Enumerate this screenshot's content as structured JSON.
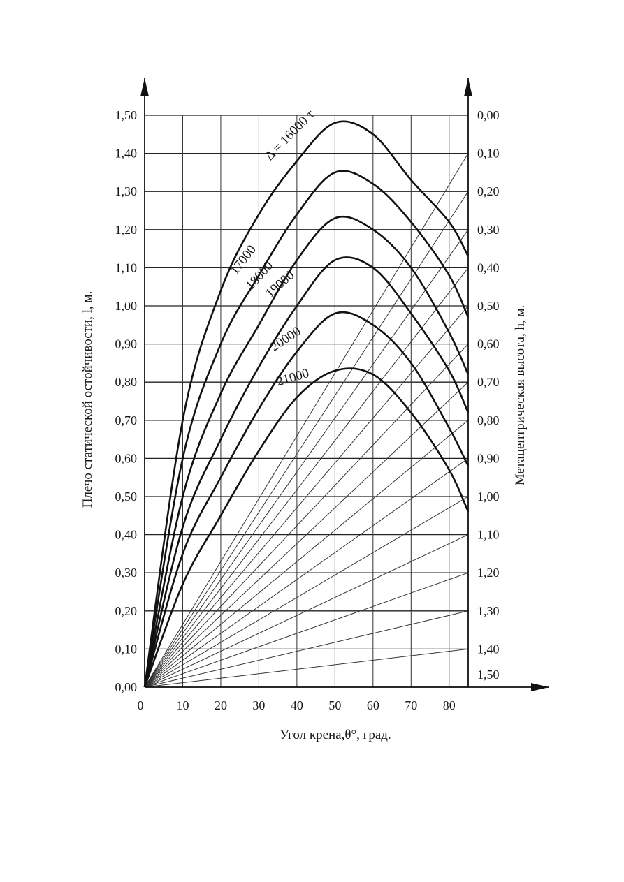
{
  "chart_data": {
    "type": "line",
    "title": "",
    "xlabel": "Угол крена,θ°, град.",
    "ylabel": "Плечо статической остойчивости, l, м.",
    "y2label": "Метацентрическая высота, h, м.",
    "xlim": [
      0,
      85
    ],
    "ylim": [
      0,
      1.5
    ],
    "y2lim": [
      1.5,
      0
    ],
    "grid": true,
    "x_ticks": [
      "0",
      "10",
      "20",
      "30",
      "40",
      "50",
      "60",
      "70",
      "80"
    ],
    "y_ticks": [
      "0,00",
      "0,10",
      "0,20",
      "0,30",
      "0,40",
      "0,50",
      "0,60",
      "0,70",
      "0,80",
      "0,90",
      "1,00",
      "1,10",
      "1,20",
      "1,30",
      "1,40",
      "1,50"
    ],
    "y2_ticks": [
      "0,00",
      "0,10",
      "0,20",
      "0,30",
      "0,40",
      "0,50",
      "0,60",
      "0,70",
      "0,80",
      "0,90",
      "1,00",
      "1,10",
      "1,20",
      "1,30",
      "1,40",
      "1,50"
    ],
    "series": [
      {
        "name": "Δ = 16000 т",
        "label": "Δ = 16000 т",
        "x": [
          0,
          10,
          20,
          30,
          40,
          50,
          60,
          70,
          80,
          85
        ],
        "y": [
          0,
          0.7,
          1.04,
          1.24,
          1.38,
          1.48,
          1.45,
          1.33,
          1.22,
          1.13
        ]
      },
      {
        "name": "17000",
        "label": "17000",
        "x": [
          0,
          10,
          20,
          30,
          40,
          50,
          60,
          70,
          80,
          85
        ],
        "y": [
          0,
          0.6,
          0.9,
          1.08,
          1.24,
          1.35,
          1.32,
          1.22,
          1.08,
          0.97
        ]
      },
      {
        "name": "18000",
        "label": "18000",
        "x": [
          0,
          10,
          20,
          30,
          40,
          50,
          60,
          70,
          80,
          85
        ],
        "y": [
          0,
          0.5,
          0.77,
          0.95,
          1.12,
          1.23,
          1.2,
          1.1,
          0.93,
          0.82
        ]
      },
      {
        "name": "19000",
        "label": "19000",
        "x": [
          0,
          10,
          20,
          30,
          40,
          50,
          60,
          70,
          80,
          85
        ],
        "y": [
          0,
          0.42,
          0.65,
          0.84,
          1.0,
          1.12,
          1.1,
          0.98,
          0.83,
          0.72
        ]
      },
      {
        "name": "20000",
        "label": "20000",
        "x": [
          0,
          10,
          20,
          30,
          40,
          50,
          60,
          70,
          80,
          85
        ],
        "y": [
          0,
          0.35,
          0.55,
          0.73,
          0.88,
          0.98,
          0.95,
          0.85,
          0.68,
          0.58
        ]
      },
      {
        "name": "21000",
        "label": "21000",
        "x": [
          0,
          10,
          20,
          30,
          40,
          50,
          60,
          70,
          80,
          85
        ],
        "y": [
          0,
          0.27,
          0.45,
          0.62,
          0.76,
          0.83,
          0.82,
          0.72,
          0.57,
          0.46
        ]
      }
    ],
    "metacentric_lines": [
      0.1,
      0.2,
      0.3,
      0.4,
      0.5,
      0.6,
      0.7,
      0.8,
      0.9,
      1.0,
      1.1,
      1.2,
      1.3,
      1.4,
      1.5
    ]
  }
}
